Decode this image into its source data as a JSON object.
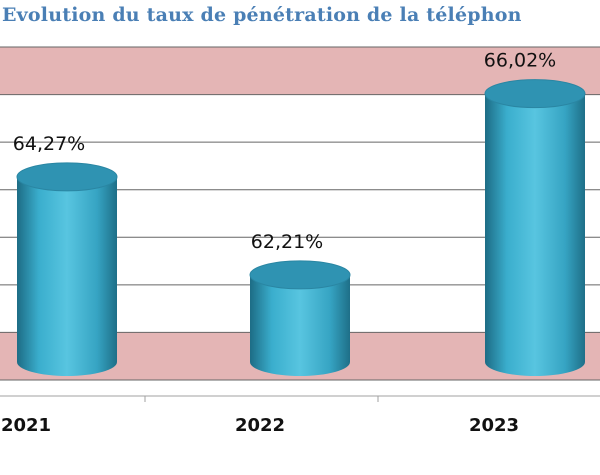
{
  "chart_data": {
    "type": "bar",
    "style": "3d-cylinder",
    "title": "Evolution du taux de pénétration de la téléphon",
    "categories": [
      "2021",
      "2022",
      "2023"
    ],
    "values": [
      64.27,
      62.21,
      66.02
    ],
    "value_labels": [
      "64,27%",
      "62,21%",
      "66,02%"
    ],
    "ylim": [
      60,
      67
    ],
    "gridlines": [
      60,
      61,
      62,
      63,
      64,
      65,
      66,
      67
    ],
    "grid": true,
    "legend": "none",
    "colors": {
      "bar": "#38a9c8",
      "bar_dark": "#1f6f88",
      "bar_top": "#2f93b2",
      "plot_bg": "#ffffff",
      "band_bg": "#e4b5b5",
      "grid": "#666666",
      "title": "#4a7fb5"
    }
  }
}
